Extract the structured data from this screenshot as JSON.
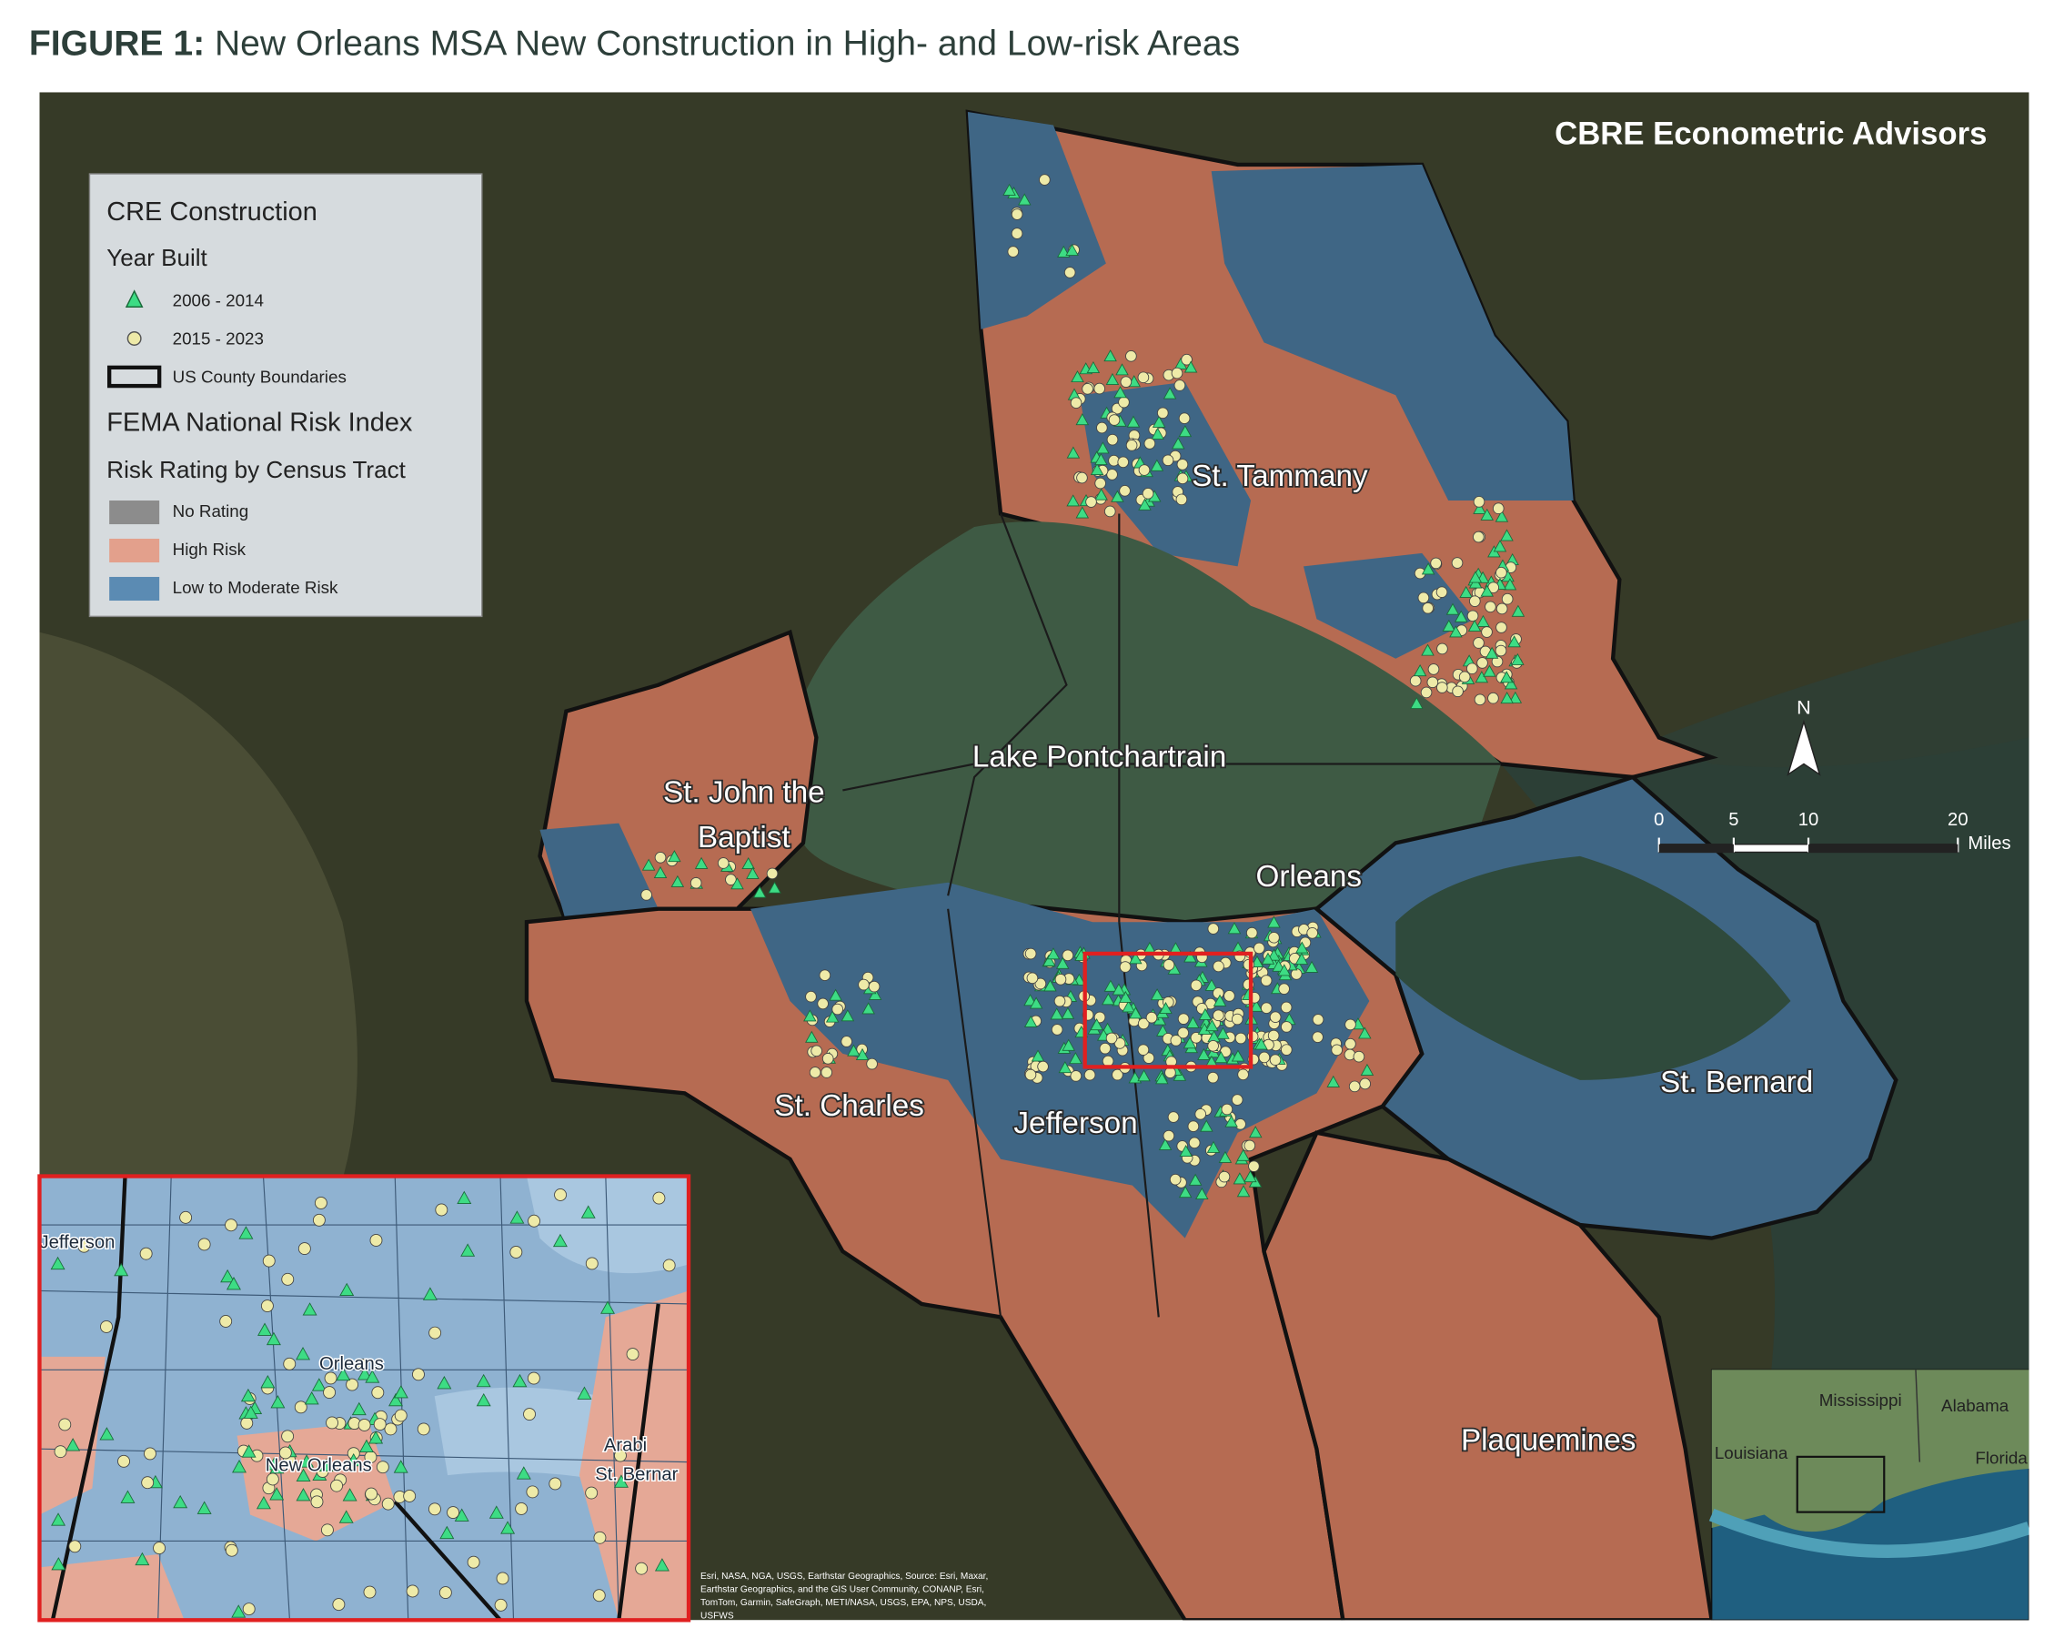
{
  "header": {
    "label": "FIGURE 1:",
    "title": "New Orleans MSA New Construction in High- and Low-risk Areas"
  },
  "credit": "CBRE Econometric Advisors",
  "legend": {
    "title": "CRE Construction",
    "year_title": "Year Built",
    "years": [
      "2006 - 2014",
      "2015 - 2023"
    ],
    "boundary": "US County Boundaries",
    "fema_title": "FEMA National Risk Index",
    "risk_title": "Risk Rating by Census Tract",
    "ratings": [
      "No Rating",
      "High Risk",
      "Low to Moderate Risk"
    ]
  },
  "places": [
    "St. Tammany",
    "Lake Pontchartrain",
    "St. John the",
    "Baptist",
    "Orleans",
    "St. Charles",
    "Jefferson",
    "St. Bernard",
    "Plaquemines"
  ],
  "north": "N",
  "scale_bar": {
    "ticks": [
      0,
      5,
      10,
      20
    ],
    "unit": "Miles"
  },
  "locator": [
    "Mississippi",
    "Alabama",
    "Louisiana",
    "Florida"
  ],
  "zoom": [
    "Jefferson",
    "Orleans",
    "New Orleans",
    "Arabi",
    "St. Bernar"
  ],
  "attribution": [
    "Esri, NASA, NGA, USGS, Earthstar Geographics, Source: Esri, Maxar,",
    "Earthstar Geographics, and the GIS User Community, CONANP, Esri,",
    "TomTom, Garmin, SafeGraph, METI/NASA, USGS, EPA, NPS, USDA,",
    "USFWS"
  ]
}
